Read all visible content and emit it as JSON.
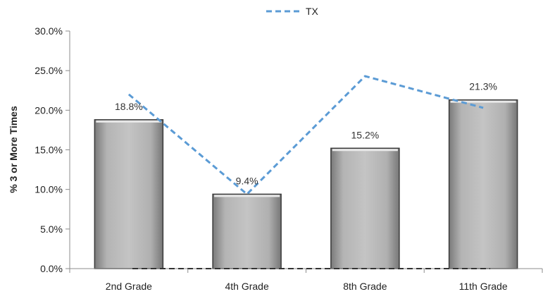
{
  "chart_data": {
    "type": "bar",
    "title": "",
    "xlabel": "",
    "ylabel": "% 3 or More Times",
    "ylim": [
      0,
      30
    ],
    "yticks": [
      "0.0%",
      "5.0%",
      "10.0%",
      "15.0%",
      "20.0%",
      "25.0%",
      "30.0%"
    ],
    "categories": [
      "2nd Grade",
      "4th Grade",
      "8th Grade",
      "11th Grade"
    ],
    "series": [
      {
        "kind": "bar",
        "values": [
          18.8,
          9.4,
          15.2,
          21.3
        ],
        "labels": [
          "18.8%",
          "9.4%",
          "15.2%",
          "21.3%"
        ],
        "color": "#b8b8b8"
      },
      {
        "kind": "line",
        "name": "TX",
        "values": [
          22.0,
          9.4,
          24.3,
          20.3
        ],
        "color": "#5b9bd5",
        "style": "dashed"
      }
    ],
    "grid": false,
    "legend": "top-center"
  }
}
